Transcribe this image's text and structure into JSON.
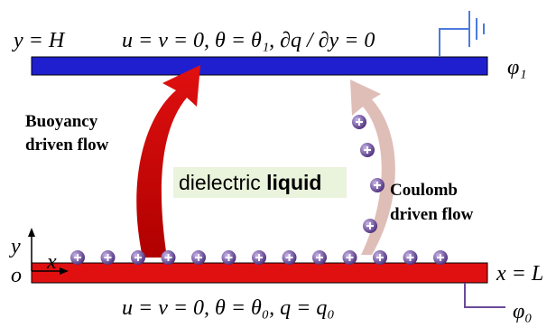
{
  "top_boundary": {
    "label": "y = H",
    "conditions": "u = v = 0,  θ = θ₁,  ∂q / ∂y = 0",
    "potential": "φ₁"
  },
  "bottom_boundary": {
    "label": "x = L",
    "conditions": "u = v = 0,  θ = θ₀,  q = q₀",
    "potential": "φ₀"
  },
  "axes": {
    "y": "y",
    "x": "x",
    "origin": "o"
  },
  "buoyancy_flow": [
    "Buoyancy",
    "driven flow"
  ],
  "coulomb_flow": [
    "Coulomb",
    "driven flow"
  ],
  "medium": {
    "word1": "dielectric",
    "word2": "liquid"
  }
}
